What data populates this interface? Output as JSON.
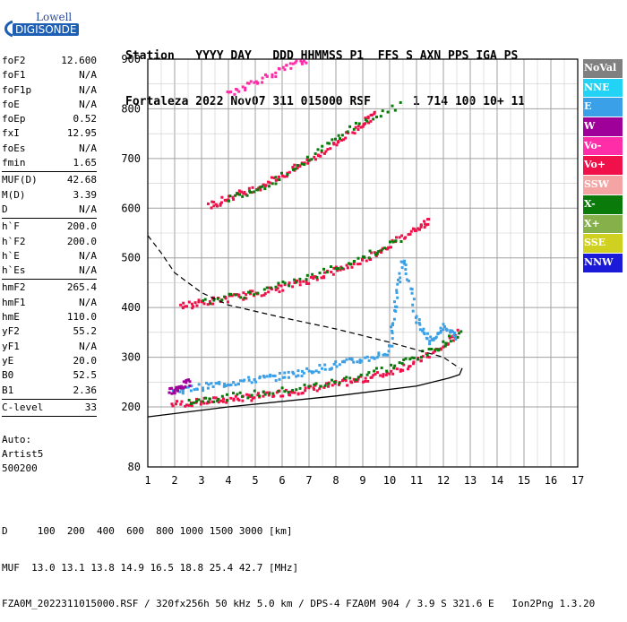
{
  "logo": {
    "line1": "Lowell",
    "line2": "DIGISONDE"
  },
  "header": {
    "line1": "Station   YYYY DAY   DDD HHMMSS P1  FFS S AXN PPS IGA PS",
    "line2": "Fortaleza 2022 Nov07 311 015000 RSF      1 714 100 10+ 11"
  },
  "params": [
    {
      "name": "foF2",
      "value": "12.600"
    },
    {
      "name": "foF1",
      "value": "N/A"
    },
    {
      "name": "foF1p",
      "value": "N/A"
    },
    {
      "name": "foE",
      "value": "N/A"
    },
    {
      "name": "foEp",
      "value": "0.52"
    },
    {
      "name": "fxI",
      "value": "12.95"
    },
    {
      "name": "foEs",
      "value": "N/A"
    },
    {
      "name": "fmin",
      "value": "1.65"
    },
    {
      "sep": true
    },
    {
      "name": "MUF(D)",
      "value": "42.68"
    },
    {
      "name": "M(D)",
      "value": "3.39"
    },
    {
      "name": "D",
      "value": "N/A"
    },
    {
      "sep": true
    },
    {
      "name": "h`F",
      "value": "200.0"
    },
    {
      "name": "h`F2",
      "value": "200.0"
    },
    {
      "name": "h`E",
      "value": "N/A"
    },
    {
      "name": "h`Es",
      "value": "N/A"
    },
    {
      "sep": true
    },
    {
      "name": "hmF2",
      "value": "265.4"
    },
    {
      "name": "hmF1",
      "value": "N/A"
    },
    {
      "name": "hmE",
      "value": "110.0"
    },
    {
      "name": "yF2",
      "value": "55.2"
    },
    {
      "name": "yF1",
      "value": "N/A"
    },
    {
      "name": "yE",
      "value": "20.0"
    },
    {
      "name": "B0",
      "value": "52.5"
    },
    {
      "name": "B1",
      "value": "2.36"
    },
    {
      "sep": true
    },
    {
      "name": "C-level",
      "value": "33"
    },
    {
      "sep": true
    }
  ],
  "auto": {
    "line1": "Auto:",
    "line2": "Artist5",
    "line3": "500200"
  },
  "legend": [
    {
      "label": "NoVal",
      "color": "#808080"
    },
    {
      "label": "NNE",
      "color": "#22d3f5"
    },
    {
      "label": "E",
      "color": "#3aa0e8"
    },
    {
      "label": "W",
      "color": "#a0009a"
    },
    {
      "label": "Vo-",
      "color": "#ff2da8"
    },
    {
      "label": "Vo+",
      "color": "#f0104a"
    },
    {
      "label": "SSW",
      "color": "#f5a4a4"
    },
    {
      "label": "X-",
      "color": "#0a7a0a"
    },
    {
      "label": "X+",
      "color": "#86b04a"
    },
    {
      "label": "SSE",
      "color": "#d0d020"
    },
    {
      "label": "NNW",
      "color": "#1a1ad8"
    }
  ],
  "footer": {
    "line1": "D     100  200  400  600  800 1000 1500 3000 [km]",
    "line2": "MUF  13.0 13.1 13.8 14.9 16.5 18.8 25.4 42.7 [MHz]",
    "line3": "FZA0M_2022311015000.RSF / 320fx256h 50 kHz 5.0 km / DPS-4 FZA0M 904 / 3.9 S 321.6 E   Ion2Png 1.3.20"
  },
  "chart_data": {
    "type": "scatter",
    "title": "",
    "xlabel": "",
    "ylabel": "",
    "xlim": [
      1,
      17
    ],
    "ylim": [
      80,
      900
    ],
    "x_ticks": [
      1,
      2,
      3,
      4,
      5,
      6,
      7,
      8,
      9,
      10,
      11,
      12,
      13,
      14,
      15,
      16,
      17
    ],
    "y_ticks": [
      80,
      200,
      300,
      400,
      500,
      600,
      700,
      800,
      900
    ],
    "grid": true,
    "traces": [
      {
        "name": "O-trace 1st hop",
        "color": "#f0104a",
        "x": [
          1.9,
          3,
          4,
          5,
          6,
          7,
          8,
          9,
          10,
          11,
          12,
          12.6
        ],
        "y": [
          205,
          210,
          215,
          220,
          228,
          235,
          245,
          255,
          270,
          290,
          320,
          350
        ]
      },
      {
        "name": "X-trace 1st hop",
        "color": "#0a7a0a",
        "x": [
          2.5,
          4,
          6,
          8,
          10,
          11.5,
          12.8
        ],
        "y": [
          212,
          220,
          232,
          250,
          280,
          310,
          355
        ]
      },
      {
        "name": "E-direction 1st hop",
        "color": "#3aa0e8",
        "x": [
          2,
          3,
          4,
          5,
          6,
          7,
          8,
          9,
          10
        ],
        "y": [
          232,
          240,
          248,
          255,
          262,
          272,
          285,
          295,
          310
        ]
      },
      {
        "name": "W-direction 1st hop",
        "color": "#a0009a",
        "x": [
          1.8,
          2.2,
          2.6
        ],
        "y": [
          230,
          240,
          250
        ]
      },
      {
        "name": "O-trace 2nd hop",
        "color": "#f0104a",
        "x": [
          2.2,
          3,
          4,
          5,
          6,
          7,
          8,
          9,
          10,
          11,
          11.5
        ],
        "y": [
          402,
          410,
          418,
          428,
          440,
          455,
          475,
          495,
          525,
          560,
          575
        ]
      },
      {
        "name": "X-trace 2nd hop",
        "color": "#0a7a0a",
        "x": [
          3,
          5,
          7,
          9,
          10.5
        ],
        "y": [
          412,
          430,
          460,
          500,
          540
        ]
      },
      {
        "name": "O-trace 3rd hop",
        "color": "#f0104a",
        "x": [
          3.3,
          4,
          5,
          6,
          7,
          8,
          9,
          9.5
        ],
        "y": [
          605,
          620,
          640,
          665,
          695,
          730,
          770,
          790
        ]
      },
      {
        "name": "X-trace 3rd hop",
        "color": "#0a7a0a",
        "x": [
          4,
          5.5,
          7,
          8.5,
          10.5
        ],
        "y": [
          620,
          648,
          700,
          760,
          810
        ]
      },
      {
        "name": "4th hop",
        "color": "#ff2da8",
        "x": [
          4,
          5,
          6,
          7
        ],
        "y": [
          830,
          855,
          878,
          900
        ]
      },
      {
        "name": "spread echoes",
        "color": "#3aa0e8",
        "x": [
          10,
          10.2,
          10.5,
          11,
          11.5,
          12,
          12.5
        ],
        "y": [
          310,
          400,
          500,
          380,
          330,
          360,
          340
        ]
      }
    ],
    "profile": [
      {
        "x": 1.0,
        "y": 180
      },
      {
        "x": 4,
        "y": 200
      },
      {
        "x": 8,
        "y": 222
      },
      {
        "x": 11,
        "y": 242
      },
      {
        "x": 12.2,
        "y": 258
      },
      {
        "x": 12.6,
        "y": 265
      },
      {
        "x": 12.7,
        "y": 278
      }
    ],
    "muf_curve": [
      {
        "x": 1.0,
        "y": 545
      },
      {
        "x": 1.5,
        "y": 510
      },
      {
        "x": 2,
        "y": 470
      },
      {
        "x": 3,
        "y": 430
      },
      {
        "x": 4,
        "y": 405
      },
      {
        "x": 6,
        "y": 380
      },
      {
        "x": 8,
        "y": 357
      },
      {
        "x": 10,
        "y": 330
      },
      {
        "x": 12,
        "y": 300
      },
      {
        "x": 12.6,
        "y": 278
      }
    ]
  }
}
